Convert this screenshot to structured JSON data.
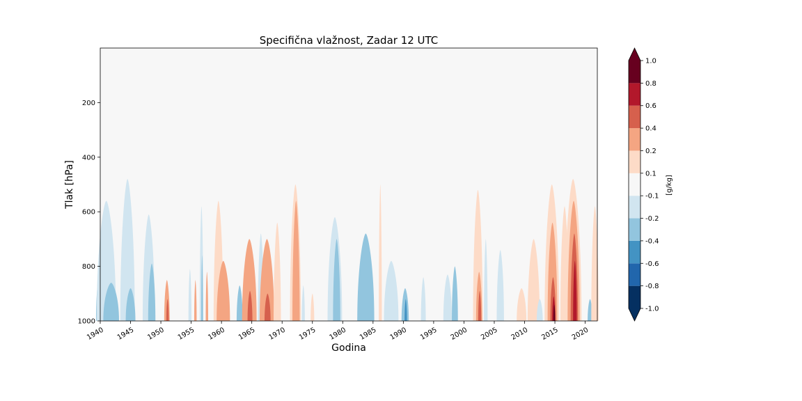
{
  "chart_data": {
    "type": "heatmap",
    "title": "Specifična vlažnost, Zadar 12 UTC",
    "xlabel": "Godina",
    "ylabel": "Tlak [hPa]",
    "xlim": [
      1940,
      2022
    ],
    "ylim": [
      1000,
      0
    ],
    "x_ticks": [
      "1940",
      "1945",
      "1950",
      "1955",
      "1960",
      "1965",
      "1970",
      "1975",
      "1980",
      "1985",
      "1990",
      "1995",
      "2000",
      "2005",
      "2010",
      "2015",
      "2020"
    ],
    "y_ticks": [
      "200",
      "400",
      "600",
      "800",
      "1000"
    ],
    "colorbar": {
      "label": "[g/kg]",
      "levels": [
        -1.0,
        -0.8,
        -0.6,
        -0.4,
        -0.2,
        -0.1,
        0.1,
        0.2,
        0.4,
        0.6,
        0.8,
        1.0
      ],
      "tick_labels": [
        "-1.0",
        "-0.8",
        "-0.6",
        "-0.4",
        "-0.2",
        "-0.1",
        "0.1",
        "0.2",
        "0.4",
        "0.6",
        "0.8",
        "1.0"
      ],
      "colors": [
        "#053061",
        "#2166ac",
        "#4393c3",
        "#92c5de",
        "#d1e5f0",
        "#f7f7f7",
        "#fddbc7",
        "#f4a582",
        "#d6604d",
        "#b2182b",
        "#67001f"
      ],
      "extend": "both"
    },
    "features": [
      {
        "year": 1940.3,
        "top": 920,
        "width": 1.8,
        "value": -0.45
      },
      {
        "year": 1940.5,
        "top": 760,
        "width": 2.4,
        "value": -0.3
      },
      {
        "year": 1941.0,
        "top": 560,
        "width": 3.2,
        "value": -0.15
      },
      {
        "year": 1941.8,
        "top": 860,
        "width": 2.6,
        "value": -0.3
      },
      {
        "year": 1944.5,
        "top": 480,
        "width": 2.4,
        "value": -0.15
      },
      {
        "year": 1945.0,
        "top": 880,
        "width": 1.6,
        "value": -0.3
      },
      {
        "year": 1948.0,
        "top": 610,
        "width": 2.0,
        "value": -0.15
      },
      {
        "year": 1948.5,
        "top": 790,
        "width": 1.2,
        "value": -0.3
      },
      {
        "year": 1951.0,
        "top": 850,
        "width": 0.9,
        "value": 0.3
      },
      {
        "year": 1951.1,
        "top": 920,
        "width": 0.4,
        "value": 0.5
      },
      {
        "year": 1954.8,
        "top": 810,
        "width": 0.5,
        "value": -0.15
      },
      {
        "year": 1955.7,
        "top": 850,
        "width": 0.4,
        "value": 0.3
      },
      {
        "year": 1956.7,
        "top": 580,
        "width": 0.6,
        "value": -0.15
      },
      {
        "year": 1956.8,
        "top": 760,
        "width": 0.3,
        "value": -0.3
      },
      {
        "year": 1957.6,
        "top": 820,
        "width": 0.4,
        "value": 0.3
      },
      {
        "year": 1959.5,
        "top": 560,
        "width": 1.6,
        "value": 0.15
      },
      {
        "year": 1960.3,
        "top": 780,
        "width": 2.2,
        "value": 0.3
      },
      {
        "year": 1963.0,
        "top": 870,
        "width": 1.0,
        "value": -0.3
      },
      {
        "year": 1964.6,
        "top": 700,
        "width": 2.4,
        "value": 0.3
      },
      {
        "year": 1964.7,
        "top": 890,
        "width": 0.8,
        "value": 0.5
      },
      {
        "year": 1966.5,
        "top": 680,
        "width": 1.0,
        "value": -0.15
      },
      {
        "year": 1967.5,
        "top": 700,
        "width": 2.4,
        "value": 0.3
      },
      {
        "year": 1967.6,
        "top": 900,
        "width": 1.0,
        "value": 0.5
      },
      {
        "year": 1969.2,
        "top": 640,
        "width": 1.2,
        "value": 0.15
      },
      {
        "year": 1972.2,
        "top": 500,
        "width": 1.8,
        "value": 0.15
      },
      {
        "year": 1972.3,
        "top": 560,
        "width": 1.2,
        "value": 0.3
      },
      {
        "year": 1973.5,
        "top": 870,
        "width": 0.5,
        "value": -0.15
      },
      {
        "year": 1975.0,
        "top": 900,
        "width": 0.6,
        "value": 0.15
      },
      {
        "year": 1978.7,
        "top": 620,
        "width": 2.4,
        "value": -0.15
      },
      {
        "year": 1979.0,
        "top": 700,
        "width": 1.2,
        "value": -0.3
      },
      {
        "year": 1983.8,
        "top": 680,
        "width": 2.8,
        "value": -0.3
      },
      {
        "year": 1986.2,
        "top": 500,
        "width": 0.5,
        "value": 0.15
      },
      {
        "year": 1988.0,
        "top": 780,
        "width": 2.4,
        "value": -0.15
      },
      {
        "year": 1990.3,
        "top": 880,
        "width": 1.2,
        "value": -0.3
      },
      {
        "year": 1990.4,
        "top": 920,
        "width": 0.4,
        "value": -0.5
      },
      {
        "year": 1993.3,
        "top": 840,
        "width": 0.8,
        "value": -0.15
      },
      {
        "year": 1997.3,
        "top": 830,
        "width": 1.4,
        "value": -0.15
      },
      {
        "year": 1998.5,
        "top": 800,
        "width": 1.0,
        "value": -0.3
      },
      {
        "year": 2002.3,
        "top": 520,
        "width": 1.6,
        "value": 0.15
      },
      {
        "year": 2002.5,
        "top": 820,
        "width": 1.0,
        "value": 0.3
      },
      {
        "year": 2002.6,
        "top": 890,
        "width": 0.5,
        "value": 0.5
      },
      {
        "year": 2003.6,
        "top": 700,
        "width": 0.6,
        "value": -0.15
      },
      {
        "year": 2006.0,
        "top": 740,
        "width": 1.2,
        "value": -0.15
      },
      {
        "year": 2009.5,
        "top": 880,
        "width": 1.6,
        "value": 0.15
      },
      {
        "year": 2011.5,
        "top": 700,
        "width": 2.0,
        "value": 0.15
      },
      {
        "year": 2012.5,
        "top": 920,
        "width": 1.0,
        "value": -0.15
      },
      {
        "year": 2014.5,
        "top": 500,
        "width": 2.4,
        "value": 0.15
      },
      {
        "year": 2014.6,
        "top": 640,
        "width": 1.6,
        "value": 0.3
      },
      {
        "year": 2014.7,
        "top": 840,
        "width": 0.9,
        "value": 0.5
      },
      {
        "year": 2014.8,
        "top": 910,
        "width": 0.5,
        "value": 0.7
      },
      {
        "year": 2014.9,
        "top": 940,
        "width": 0.3,
        "value": 0.9
      },
      {
        "year": 2016.6,
        "top": 580,
        "width": 1.4,
        "value": 0.15
      },
      {
        "year": 2018.0,
        "top": 480,
        "width": 2.8,
        "value": 0.15
      },
      {
        "year": 2018.1,
        "top": 560,
        "width": 2.0,
        "value": 0.3
      },
      {
        "year": 2018.2,
        "top": 680,
        "width": 1.2,
        "value": 0.5
      },
      {
        "year": 2018.3,
        "top": 780,
        "width": 0.6,
        "value": 0.7
      },
      {
        "year": 2020.8,
        "top": 920,
        "width": 0.8,
        "value": -0.3
      },
      {
        "year": 2021.6,
        "top": 580,
        "width": 1.2,
        "value": 0.15
      }
    ]
  }
}
